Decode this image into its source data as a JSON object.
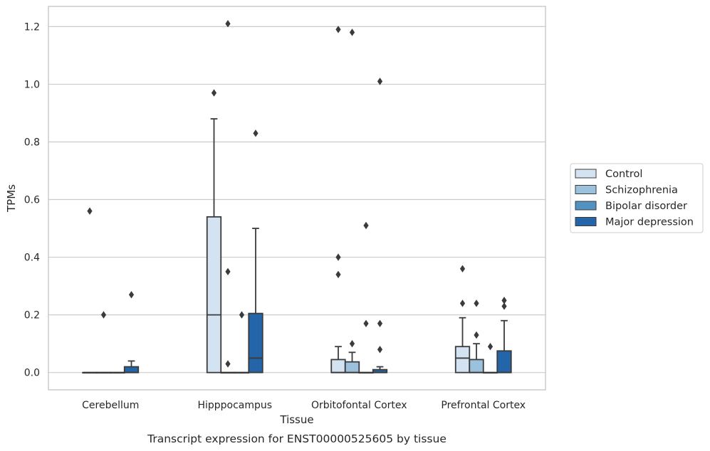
{
  "chart_data": {
    "type": "box",
    "title": "",
    "caption": "Transcript expression for ENST00000525605 by tissue",
    "xlabel": "Tissue",
    "ylabel": "TPMs",
    "ylim": [
      -0.06,
      1.27
    ],
    "yticks": [
      "0.0",
      "0.2",
      "0.4",
      "0.6",
      "0.8",
      "1.0",
      "1.2"
    ],
    "grid": true,
    "legend_position": "right",
    "categories": [
      "Cerebellum",
      "Hipppocampus",
      "Orbitofontal Cortex",
      "Prefrontal Cortex"
    ],
    "series": [
      {
        "name": "Control",
        "color": "#d4e3f2",
        "boxes": [
          {
            "q1": 0,
            "median": 0,
            "q3": 0,
            "whislo": 0,
            "whishi": 0,
            "fliers": [
              0.56
            ]
          },
          {
            "q1": 0,
            "median": 0.2,
            "q3": 0.54,
            "whislo": 0,
            "whishi": 0.88,
            "fliers": [
              0.97
            ]
          },
          {
            "q1": 0,
            "median": 0,
            "q3": 0.045,
            "whislo": 0,
            "whishi": 0.09,
            "fliers": [
              0.34,
              0.4,
              1.19
            ]
          },
          {
            "q1": 0,
            "median": 0.05,
            "q3": 0.09,
            "whislo": 0,
            "whishi": 0.19,
            "fliers": [
              0.24,
              0.36
            ]
          }
        ]
      },
      {
        "name": "Schizophrenia",
        "color": "#9bc1dc",
        "boxes": [
          {
            "q1": 0,
            "median": 0,
            "q3": 0,
            "whislo": 0,
            "whishi": 0,
            "fliers": [
              0.2
            ]
          },
          {
            "q1": 0,
            "median": 0,
            "q3": 0,
            "whislo": 0,
            "whishi": 0,
            "fliers": [
              0.03,
              0.35,
              1.21
            ]
          },
          {
            "q1": 0,
            "median": 0,
            "q3": 0.037,
            "whislo": 0,
            "whishi": 0.07,
            "fliers": [
              0.1,
              1.18
            ]
          },
          {
            "q1": 0,
            "median": 0,
            "q3": 0.045,
            "whislo": 0,
            "whishi": 0.1,
            "fliers": [
              0.13,
              0.24
            ]
          }
        ]
      },
      {
        "name": "Bipolar disorder",
        "color": "#5292c3",
        "boxes": [
          {
            "q1": 0,
            "median": 0,
            "q3": 0,
            "whislo": 0,
            "whishi": 0,
            "fliers": []
          },
          {
            "q1": 0,
            "median": 0,
            "q3": 0,
            "whislo": 0,
            "whishi": 0,
            "fliers": [
              0.2
            ]
          },
          {
            "q1": 0,
            "median": 0,
            "q3": 0,
            "whislo": 0,
            "whishi": 0,
            "fliers": [
              0.17,
              0.51
            ]
          },
          {
            "q1": 0,
            "median": 0,
            "q3": 0,
            "whislo": 0,
            "whishi": 0,
            "fliers": [
              0.09
            ]
          }
        ]
      },
      {
        "name": "Major depression",
        "color": "#2464a8",
        "boxes": [
          {
            "q1": 0,
            "median": 0,
            "q3": 0.02,
            "whislo": 0,
            "whishi": 0.04,
            "fliers": [
              0.27
            ]
          },
          {
            "q1": 0,
            "median": 0.05,
            "q3": 0.205,
            "whislo": 0,
            "whishi": 0.5,
            "fliers": [
              0.83
            ]
          },
          {
            "q1": 0,
            "median": 0,
            "q3": 0.01,
            "whislo": 0,
            "whishi": 0.02,
            "fliers": [
              0.08,
              0.17,
              1.01
            ]
          },
          {
            "q1": 0,
            "median": 0,
            "q3": 0.075,
            "whislo": 0,
            "whishi": 0.18,
            "fliers": [
              0.23,
              0.25
            ]
          }
        ]
      }
    ]
  }
}
